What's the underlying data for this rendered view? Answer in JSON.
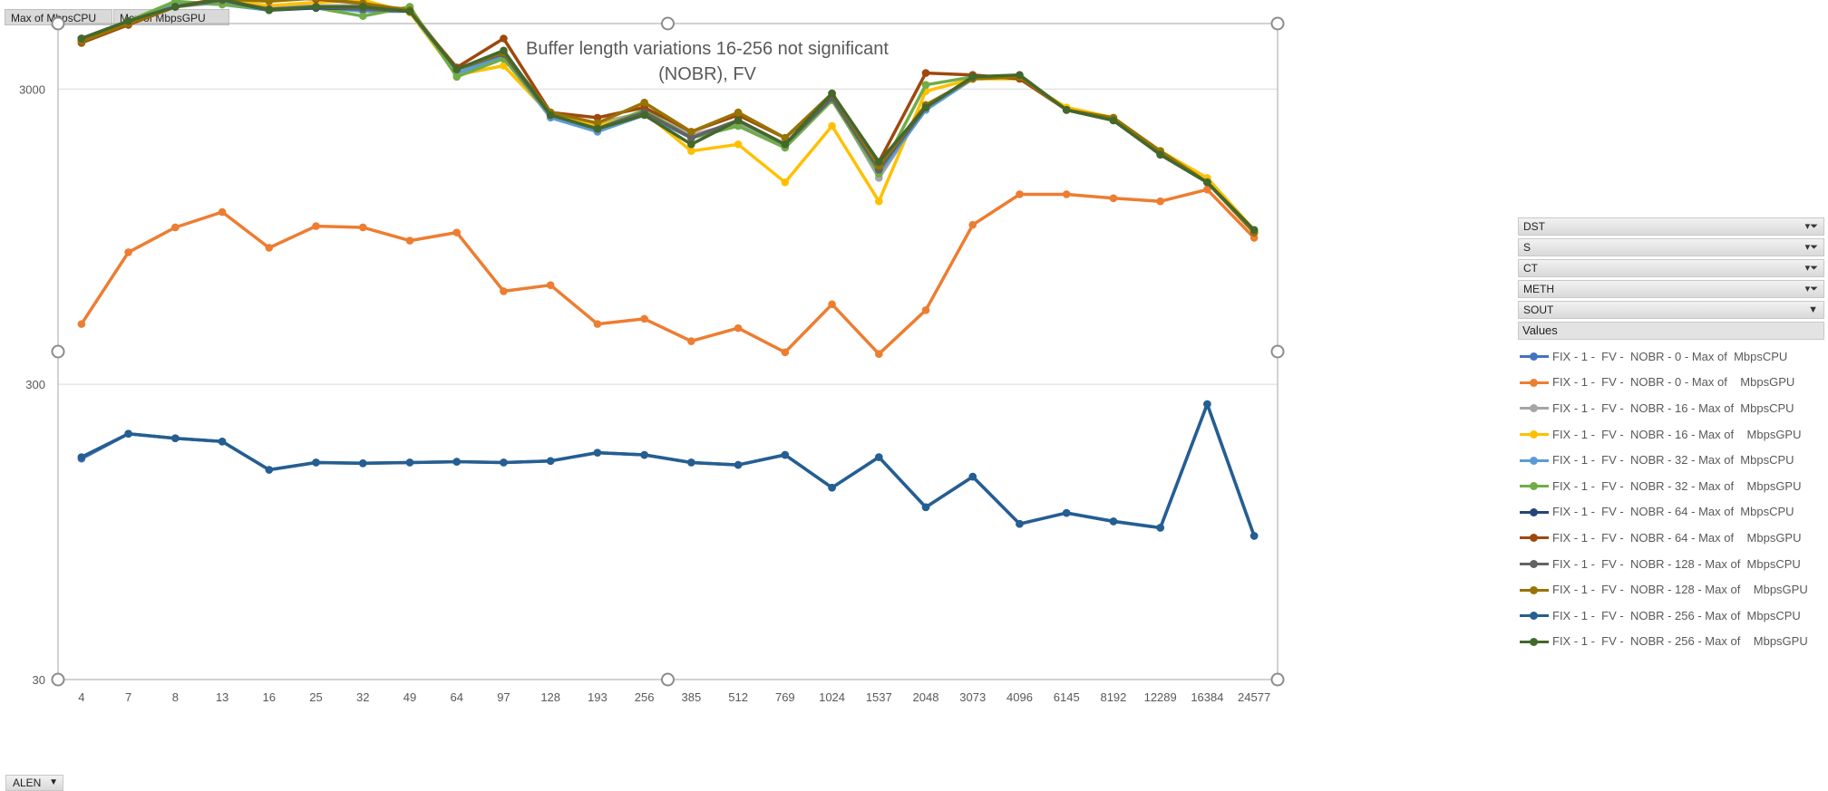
{
  "value_fields": [
    {
      "label": "Max of  MbpsCPU"
    },
    {
      "label": "Max of    MbpsGPU"
    }
  ],
  "filters": [
    {
      "label": "DST",
      "has_filter": true
    },
    {
      "label": "S",
      "has_filter": true
    },
    {
      "label": "CT",
      "has_filter": true
    },
    {
      "label": "METH",
      "has_filter": true
    },
    {
      "label": "SOUT",
      "has_filter": false
    }
  ],
  "values_header": "Values",
  "axis_field": {
    "label": "ALEN"
  },
  "chart_data": {
    "type": "line",
    "title": "Buffer length variations 16-256 not significant\n(NOBR), FV",
    "xlabel": "",
    "ylabel": "",
    "y_scale": "log",
    "ylim": [
      30,
      5000
    ],
    "y_ticks": [
      30,
      300,
      3000
    ],
    "grid": "horizontal",
    "legend_position": "right",
    "categories": [
      "4",
      "7",
      "8",
      "13",
      "16",
      "25",
      "32",
      "49",
      "64",
      "97",
      "128",
      "193",
      "256",
      "385",
      "512",
      "769",
      "1024",
      "1537",
      "2048",
      "3073",
      "4096",
      "6145",
      "8192",
      "12289",
      "16384",
      "24577"
    ],
    "series": [
      {
        "name": "FIX - 1 -  FV -  NOBR - 0 - Max of  MbpsCPU",
        "color": "#4472c4",
        "values": [
          168,
          204,
          197,
          192,
          154,
          163,
          162,
          163,
          164,
          163,
          165,
          176,
          173,
          163,
          160,
          173,
          134,
          170,
          115,
          146,
          101,
          110,
          103,
          98,
          257,
          92
        ]
      },
      {
        "name": "FIX - 1 -  FV -  NOBR - 0 - Max of    MbpsGPU",
        "color": "#ed7d31",
        "values": [
          480,
          840,
          1020,
          1150,
          870,
          1030,
          1020,
          920,
          980,
          620,
          650,
          480,
          500,
          420,
          465,
          385,
          560,
          380,
          535,
          1040,
          1320,
          1320,
          1280,
          1250,
          1370,
          940
        ]
      },
      {
        "name": "FIX - 1 -  FV -  NOBR - 16 - Max of  MbpsCPU",
        "color": "#a5a5a5",
        "values": [
          4450,
          5100,
          5700,
          5900,
          5700,
          5750,
          5750,
          5600,
          3500,
          3900,
          2450,
          2300,
          2500,
          2100,
          2300,
          1950,
          2800,
          1500,
          2600,
          3250,
          3300,
          2550,
          2350,
          1800,
          1450,
          980
        ]
      },
      {
        "name": "FIX - 1 -  FV -  NOBR - 16 - Max of    MbpsGPU",
        "color": "#ffc000",
        "values": [
          4400,
          5000,
          5700,
          6000,
          5750,
          5900,
          6000,
          5450,
          3350,
          3600,
          2450,
          2250,
          2500,
          1850,
          1950,
          1450,
          2250,
          1250,
          2950,
          3250,
          3250,
          2600,
          2400,
          1850,
          1500,
          1000
        ]
      },
      {
        "name": "FIX - 1 -  FV -  NOBR - 32 - Max of  MbpsCPU",
        "color": "#5b9bd5",
        "values": [
          4400,
          5000,
          5900,
          5800,
          5550,
          5700,
          5500,
          5500,
          3400,
          3850,
          2400,
          2150,
          2450,
          2050,
          2250,
          1900,
          2750,
          1550,
          2550,
          3250,
          3300,
          2550,
          2350,
          1800,
          1450,
          980
        ]
      },
      {
        "name": "FIX - 1 -  FV -  NOBR - 32 - Max of    MbpsGPU",
        "color": "#70ad47",
        "values": [
          4450,
          5100,
          5950,
          5800,
          5600,
          5650,
          5300,
          5700,
          3300,
          3800,
          2450,
          2200,
          2550,
          2050,
          2250,
          1900,
          2750,
          1550,
          3100,
          3300,
          3300,
          2550,
          2350,
          1850,
          1450,
          1000
        ]
      },
      {
        "name": "FIX - 1 -  FV -  NOBR - 64 - Max of  MbpsCPU",
        "color": "#264478",
        "values": [
          4450,
          5100,
          5700,
          6000,
          5550,
          5650,
          5600,
          5500,
          3500,
          3950,
          2450,
          2200,
          2500,
          2050,
          2350,
          1950,
          2800,
          1600,
          2600,
          3300,
          3300,
          2550,
          2350,
          1800,
          1450,
          980
        ]
      },
      {
        "name": "FIX - 1 -  FV -  NOBR - 64 - Max of    MbpsGPU",
        "color": "#9e480e",
        "values": [
          4300,
          4950,
          5700,
          6100,
          6150,
          6050,
          5850,
          5500,
          3550,
          4450,
          2500,
          2400,
          2600,
          2150,
          2450,
          2050,
          2850,
          1700,
          3400,
          3350,
          3250,
          2550,
          2350,
          1800,
          1450,
          980
        ]
      },
      {
        "name": "FIX - 1 -  FV -  NOBR - 128 - Max of  MbpsCPU",
        "color": "#636363",
        "values": [
          4450,
          5100,
          5700,
          6000,
          5600,
          5700,
          5600,
          5500,
          3500,
          3950,
          2450,
          2200,
          2500,
          2050,
          2350,
          1950,
          2800,
          1600,
          2600,
          3300,
          3300,
          2550,
          2350,
          1800,
          1450,
          980
        ]
      },
      {
        "name": "FIX - 1 -  FV -  NOBR - 128 - Max of    MbpsGPU",
        "color": "#997300",
        "values": [
          4350,
          5000,
          5700,
          6050,
          5950,
          6100,
          5850,
          5550,
          3500,
          4000,
          2500,
          2300,
          2700,
          2150,
          2500,
          2050,
          2900,
          1650,
          2650,
          3250,
          3300,
          2550,
          2400,
          1850,
          1450,
          980
        ]
      },
      {
        "name": "FIX - 1 -  FV -  NOBR - 256 - Max of  MbpsCPU",
        "color": "#255e91",
        "values": [
          170,
          204,
          197,
          192,
          154,
          163,
          162,
          163,
          164,
          163,
          165,
          176,
          173,
          163,
          160,
          173,
          134,
          170,
          115,
          146,
          101,
          110,
          103,
          98,
          257,
          92
        ]
      },
      {
        "name": "FIX - 1 -  FV -  NOBR - 256 - Max of    MbpsGPU",
        "color": "#43682b",
        "values": [
          4450,
          5100,
          5700,
          6050,
          5550,
          5700,
          5700,
          5500,
          3500,
          4050,
          2450,
          2200,
          2450,
          1950,
          2350,
          1950,
          2900,
          1700,
          2600,
          3300,
          3350,
          2550,
          2350,
          1800,
          1450,
          1000
        ]
      }
    ]
  }
}
